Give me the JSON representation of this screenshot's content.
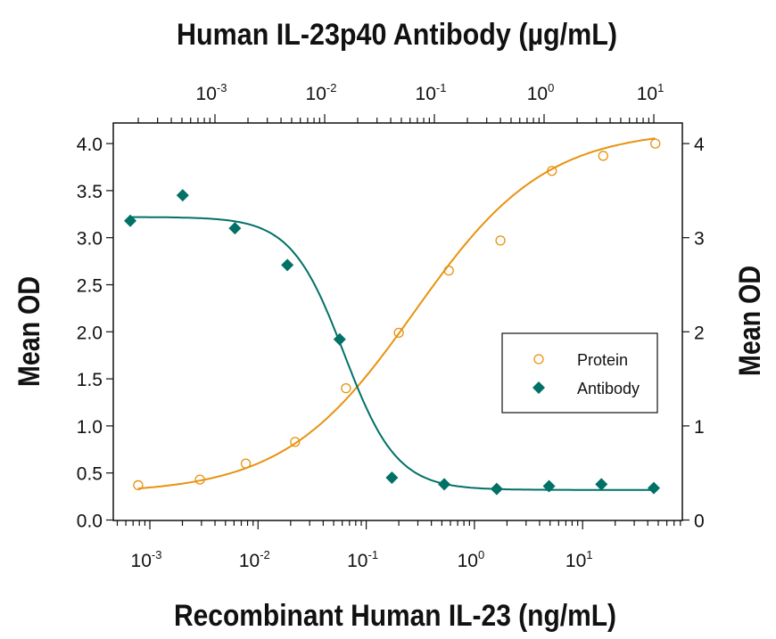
{
  "chart_data": {
    "type": "scatter",
    "title": "Human IL-23p40 Antibody (µg/mL)",
    "xlabel": "Recombinant Human IL-23 (ng/mL)",
    "x2label": "Human IL-23p40 Antibody (µg/mL)",
    "ylabel": "Mean OD",
    "y2label": "Mean OD",
    "xscale": "log",
    "xlim": [
      0.00045,
      85
    ],
    "x2lim": [
      0.00012,
      19
    ],
    "ylim": [
      0,
      4.2
    ],
    "y2lim": [
      0,
      4.2
    ],
    "yticks": [
      "0.0",
      "0.5",
      "1.0",
      "1.5",
      "2.0",
      "2.5",
      "3.0",
      "3.5",
      "4.0"
    ],
    "y2ticks": [
      "0",
      "1",
      "2",
      "3",
      "4"
    ],
    "xticks": [
      {
        "base": "10",
        "exp": "-3"
      },
      {
        "base": "10",
        "exp": "-2"
      },
      {
        "base": "10",
        "exp": "-1"
      },
      {
        "base": "10",
        "exp": "0"
      },
      {
        "base": "10",
        "exp": "1"
      }
    ],
    "x2ticks": [
      {
        "base": "10",
        "exp": "-3"
      },
      {
        "base": "10",
        "exp": "-2"
      },
      {
        "base": "10",
        "exp": "-1"
      },
      {
        "base": "10",
        "exp": "0"
      },
      {
        "base": "10",
        "exp": "1"
      }
    ],
    "grid": false,
    "legend_position": "right",
    "series": [
      {
        "name": "Protein",
        "axis": "bottom-left",
        "marker": "open-circle",
        "color": "#E8920E",
        "x": [
          0.00078,
          0.0029,
          0.0077,
          0.022,
          0.065,
          0.2,
          0.58,
          1.74,
          5.2,
          15.5,
          47
        ],
        "y": [
          0.37,
          0.43,
          0.6,
          0.83,
          1.4,
          1.99,
          2.65,
          2.97,
          3.71,
          3.87,
          4.0
        ],
        "fit": {
          "bottom": 0.28,
          "top": 4.15,
          "ec50": 0.28,
          "hill": 0.72
        }
      },
      {
        "name": "Antibody",
        "axis": "top-right",
        "marker": "filled-diamond",
        "color": "#007166",
        "x": [
          0.000169,
          0.000508,
          0.00152,
          0.00457,
          0.0137,
          0.041,
          0.123,
          0.37,
          1.11,
          3.33,
          10
        ],
        "y": [
          3.18,
          3.45,
          3.1,
          2.71,
          1.92,
          0.45,
          0.38,
          0.33,
          0.36,
          0.38,
          0.34
        ],
        "fit": {
          "bottom": 0.32,
          "top": 3.22,
          "ec50": 0.015,
          "hill": -1.8
        }
      }
    ]
  }
}
